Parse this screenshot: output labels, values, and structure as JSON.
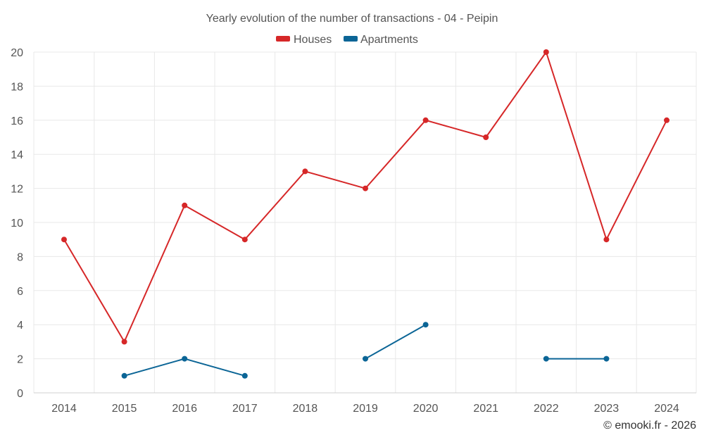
{
  "chart_data": {
    "type": "line",
    "title": "Yearly evolution of the number of transactions - 04 - Peipin",
    "categories": [
      "2014",
      "2015",
      "2016",
      "2017",
      "2018",
      "2019",
      "2020",
      "2021",
      "2022",
      "2023",
      "2024"
    ],
    "series": [
      {
        "name": "Houses",
        "color": "#d62728",
        "values": [
          9,
          3,
          11,
          9,
          13,
          12,
          16,
          15,
          20,
          9,
          16
        ]
      },
      {
        "name": "Apartments",
        "color": "#0b6596",
        "values": [
          null,
          1,
          2,
          1,
          null,
          2,
          4,
          null,
          2,
          2,
          null
        ]
      }
    ],
    "ylim": [
      0,
      20
    ],
    "yticks": [
      0,
      2,
      4,
      6,
      8,
      10,
      12,
      14,
      16,
      18,
      20
    ],
    "xlabel": "",
    "ylabel": "",
    "grid": true,
    "legend_position": "top-center"
  },
  "credit": "© emooki.fr - 2026"
}
